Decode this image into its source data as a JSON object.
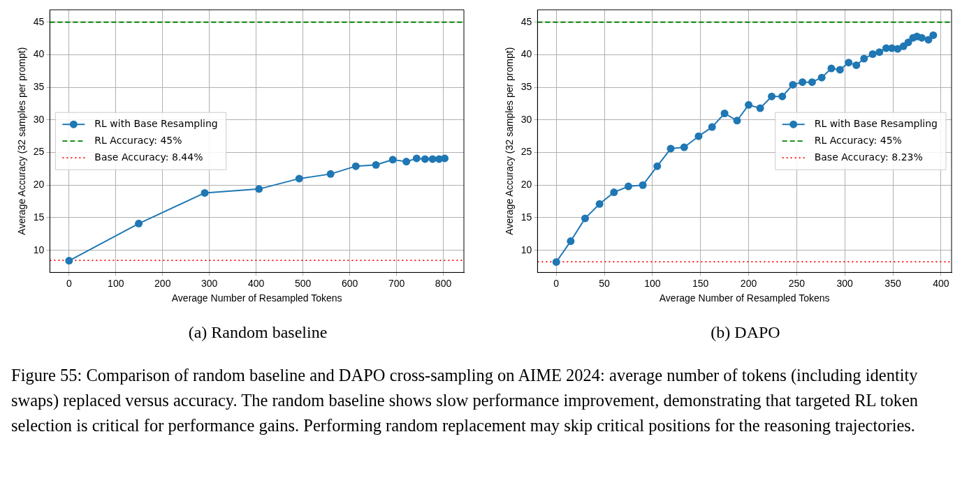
{
  "chart_data": [
    {
      "type": "line",
      "annotations": [
        "(a) Random baseline"
      ],
      "xlabel": "Average Number of Resampled Tokens",
      "ylabel": "Average Accuracy (32 samples per prompt)",
      "legend": "center left",
      "grid": true,
      "marker": "circle",
      "xlim": [
        -41,
        844
      ],
      "ylim": [
        6.6,
        46.9
      ],
      "xticks": [
        0,
        100,
        200,
        300,
        400,
        500,
        600,
        700,
        800
      ],
      "yticks": [
        10,
        15,
        20,
        25,
        30,
        35,
        40,
        45
      ],
      "series": [
        {
          "name": "RL with Base Resampling",
          "color": "#1f77b4",
          "x": [
            0,
            149,
            290,
            406,
            492,
            559,
            613,
            656,
            692,
            721,
            743,
            761,
            777,
            791,
            803
          ],
          "values": [
            8.4,
            14.1,
            18.8,
            19.4,
            21.0,
            21.7,
            22.9,
            23.1,
            23.9,
            23.6,
            24.1,
            24.0,
            24.0,
            24.0,
            24.1
          ]
        }
      ],
      "ref_lines": [
        {
          "axis": "y",
          "value": 45,
          "label": "RL Accuracy: 45%",
          "color": "#008000",
          "line_style": "dashed"
        },
        {
          "axis": "y",
          "value": 8.44,
          "label": "Base Accuracy: 8.44%",
          "color": "#ff0000",
          "line_style": "dotted"
        }
      ]
    },
    {
      "type": "line",
      "annotations": [
        "(b) DAPO",
        "Figure 55: Comparison of random baseline and DAPO cross-sampling on AIME 2024: average number of tokens (including identity swaps) replaced versus accuracy. The random baseline shows slow performance improvement, demonstrating that targeted RL token selection is critical for performance gains. Performing random replacement may skip critical positions for the reasoning trajectories."
      ],
      "xlabel": "Average Number of Resampled Tokens",
      "ylabel": "Average Accuracy (32 samples per prompt)",
      "legend": "center right",
      "grid": true,
      "marker": "circle",
      "xlim": [
        -19.5,
        411
      ],
      "ylim": [
        6.6,
        46.9
      ],
      "xticks": [
        0,
        50,
        100,
        150,
        200,
        250,
        300,
        350,
        400
      ],
      "yticks": [
        10,
        15,
        20,
        25,
        30,
        35,
        40,
        45
      ],
      "series": [
        {
          "name": "RL with Base Resampling",
          "color": "#1f77b4",
          "x": [
            0,
            15,
            30,
            45,
            60,
            75,
            90,
            105,
            119,
            133,
            148,
            162,
            175,
            188,
            200,
            212,
            224,
            235,
            246,
            256,
            266,
            276,
            286,
            295,
            304,
            312,
            320,
            329,
            336,
            343,
            349,
            355,
            361,
            366,
            371,
            375,
            380,
            384,
            387,
            390,
            392
          ],
          "values": [
            8.2,
            11.4,
            14.9,
            17.1,
            18.9,
            19.8,
            20.0,
            22.9,
            25.6,
            25.8,
            27.5,
            28.9,
            31.0,
            29.9,
            32.3,
            31.8,
            33.6,
            33.6,
            35.4,
            35.8,
            35.8,
            36.5,
            37.9,
            37.7,
            38.8,
            38.4,
            39.4,
            40.1,
            40.4,
            41.0,
            41.0,
            40.9,
            41.3,
            41.9,
            42.6,
            42.8,
            42.6,
            null,
            42.3,
            null,
            43.0
          ]
        }
      ],
      "ref_lines": [
        {
          "axis": "y",
          "value": 45,
          "label": "RL Accuracy: 45%",
          "color": "#008000",
          "line_style": "dashed"
        },
        {
          "axis": "y",
          "value": 8.23,
          "label": "Base Accuracy: 8.23%",
          "color": "#ff0000",
          "line_style": "dotted"
        }
      ]
    }
  ]
}
